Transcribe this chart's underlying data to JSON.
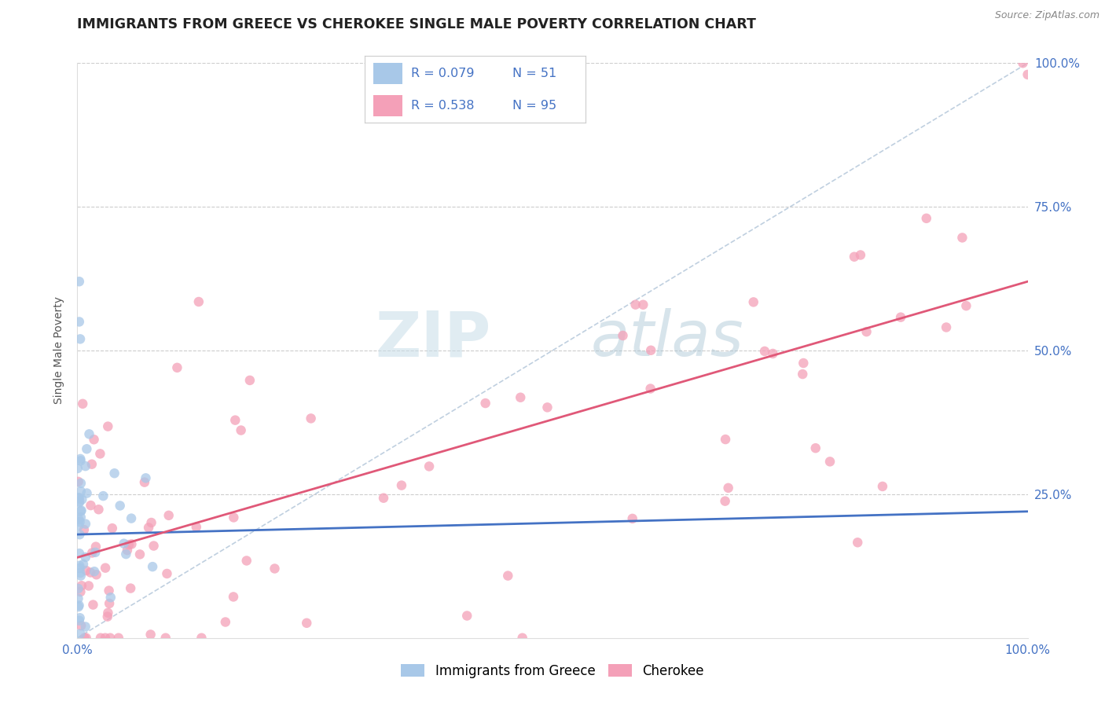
{
  "title": "IMMIGRANTS FROM GREECE VS CHEROKEE SINGLE MALE POVERTY CORRELATION CHART",
  "source": "Source: ZipAtlas.com",
  "ylabel": "Single Male Poverty",
  "legend_label1": "Immigrants from Greece",
  "legend_label2": "Cherokee",
  "color_blue": "#a8c8e8",
  "color_pink": "#f4a0b8",
  "color_blue_line": "#4472C4",
  "color_pink_line": "#e05878",
  "color_dashed": "#a0b8d0",
  "title_fontsize": 12.5,
  "axis_label_fontsize": 10,
  "tick_fontsize": 11,
  "marker_size": 9,
  "background_color": "#ffffff",
  "watermark_zip": "ZIP",
  "watermark_atlas": "atlas"
}
